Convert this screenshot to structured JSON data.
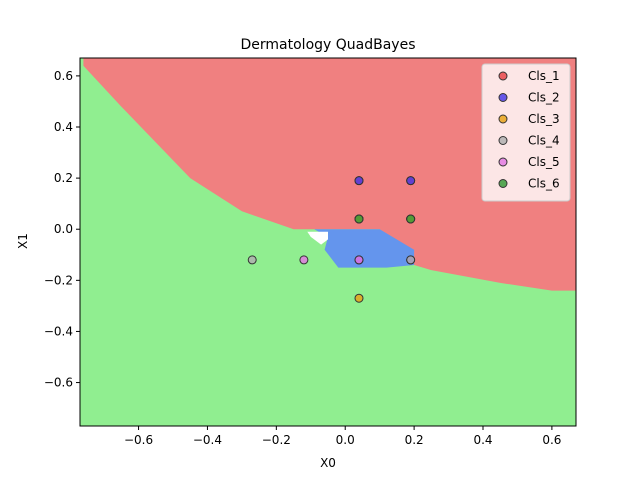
{
  "chart_data": {
    "type": "scatter",
    "title": "Dermatology QuadBayes",
    "xlabel": "X0",
    "ylabel": "X1",
    "xlim": [
      -0.77,
      0.67
    ],
    "ylim": [
      -0.77,
      0.67
    ],
    "xticks": [
      -0.6,
      -0.4,
      -0.2,
      0.0,
      0.2,
      0.4,
      0.6
    ],
    "yticks": [
      -0.6,
      -0.4,
      -0.2,
      0.0,
      0.2,
      0.4,
      0.6
    ],
    "xtick_labels": [
      "−0.6",
      "−0.4",
      "−0.2",
      "0.0",
      "0.2",
      "0.4",
      "0.6"
    ],
    "ytick_labels": [
      "−0.6",
      "−0.4",
      "−0.2",
      "0.0",
      "0.2",
      "0.4",
      "0.6"
    ],
    "legend_position": "top-right",
    "regions": {
      "Cls_1": [
        [
          -0.76,
          0.67
        ],
        [
          0.67,
          0.67
        ],
        [
          0.67,
          -0.24
        ],
        [
          0.6,
          -0.24
        ],
        [
          0.45,
          -0.21
        ],
        [
          0.25,
          -0.16
        ],
        [
          0.2,
          -0.14
        ],
        [
          0.18,
          -0.08
        ],
        [
          0.1,
          0.0
        ],
        [
          -0.15,
          0.0
        ],
        [
          -0.3,
          0.07
        ],
        [
          -0.45,
          0.2
        ],
        [
          -0.65,
          0.48
        ],
        [
          -0.76,
          0.64
        ]
      ],
      "Cls_2": [
        [
          -0.12,
          0.0
        ],
        [
          0.1,
          0.0
        ],
        [
          0.2,
          -0.08
        ],
        [
          0.2,
          -0.14
        ],
        [
          0.12,
          -0.15
        ],
        [
          -0.02,
          -0.15
        ],
        [
          -0.06,
          -0.08
        ],
        [
          -0.05,
          -0.03
        ],
        [
          -0.09,
          0.0
        ]
      ],
      "Cls_4": [
        [
          -0.11,
          -0.01
        ],
        [
          -0.05,
          -0.01
        ],
        [
          -0.05,
          -0.04
        ],
        [
          -0.07,
          -0.06
        ],
        [
          -0.1,
          -0.03
        ]
      ]
    },
    "series": [
      {
        "name": "Cls_1",
        "color": "#e8474a",
        "points": [
          [
            0.04,
            0.19
          ],
          [
            0.19,
            0.19
          ],
          [
            0.04,
            0.04
          ],
          [
            0.19,
            0.04
          ]
        ]
      },
      {
        "name": "Cls_2",
        "color": "#4b3de8",
        "points": [
          [
            0.04,
            0.19
          ],
          [
            0.19,
            0.19
          ],
          [
            0.04,
            -0.12
          ],
          [
            0.19,
            -0.12
          ]
        ]
      },
      {
        "name": "Cls_3",
        "color": "#e8a31a",
        "points": [
          [
            0.04,
            -0.27
          ],
          [
            0.04,
            0.04
          ],
          [
            0.19,
            0.04
          ]
        ]
      },
      {
        "name": "Cls_4",
        "color": "#b0b0b0",
        "points": [
          [
            -0.27,
            -0.12
          ],
          [
            0.19,
            -0.12
          ]
        ]
      },
      {
        "name": "Cls_5",
        "color": "#e27be2",
        "points": [
          [
            -0.12,
            -0.12
          ],
          [
            0.04,
            -0.12
          ]
        ]
      },
      {
        "name": "Cls_6",
        "color": "#3a9b3a",
        "points": [
          [
            0.04,
            0.04
          ],
          [
            0.19,
            0.04
          ]
        ]
      }
    ],
    "region_colors": {
      "Cls_1": "#f08080",
      "Cls_2": "#6495ed",
      "Cls_4": "#ffffff",
      "Cls_6": "#90ee90"
    }
  }
}
